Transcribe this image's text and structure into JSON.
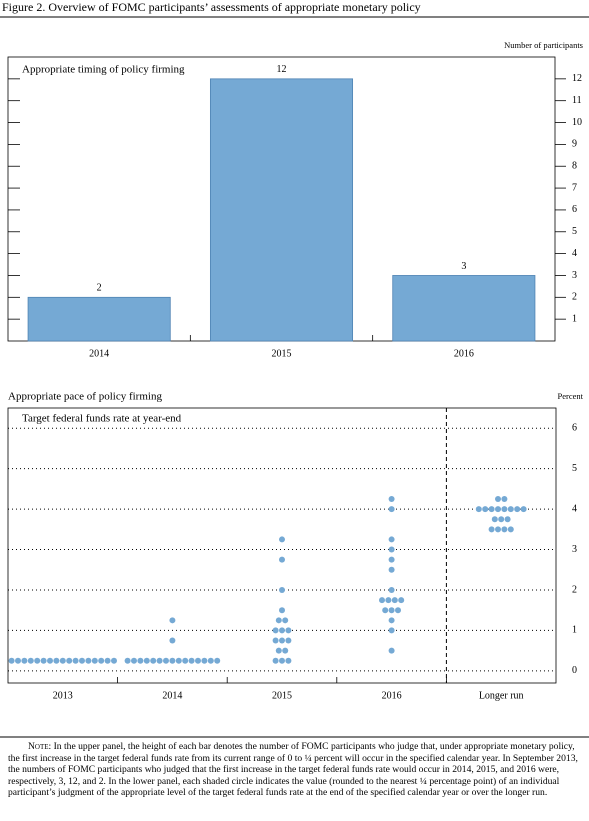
{
  "title": "Figure 2. Overview of FOMC participants’ assessments of appropriate monetary policy",
  "chart_data": [
    {
      "type": "bar",
      "title": "Appropriate timing of policy firming",
      "y_axis_label": "Number of participants",
      "categories": [
        "2014",
        "2015",
        "2016"
      ],
      "values": [
        2,
        12,
        3
      ],
      "color": "#75a9d4",
      "ylim": [
        0,
        13
      ],
      "yticks": [
        1,
        2,
        3,
        4,
        5,
        6,
        7,
        8,
        9,
        10,
        11,
        12
      ]
    },
    {
      "type": "dot",
      "title": "Appropriate pace of policy firming",
      "subtitle": "Target federal funds rate at year-end",
      "y_axis_label": "Percent",
      "categories": [
        "2013",
        "2014",
        "2015",
        "2016",
        "Longer run"
      ],
      "values": [
        [
          0.25,
          0.25,
          0.25,
          0.25,
          0.25,
          0.25,
          0.25,
          0.25,
          0.25,
          0.25,
          0.25,
          0.25,
          0.25,
          0.25,
          0.25,
          0.25,
          0.25
        ],
        [
          0.25,
          0.25,
          0.25,
          0.25,
          0.25,
          0.25,
          0.25,
          0.25,
          0.25,
          0.25,
          0.25,
          0.25,
          0.25,
          0.25,
          0.25,
          0.75,
          1.25
        ],
        [
          0.25,
          0.25,
          0.25,
          0.5,
          0.5,
          0.75,
          0.75,
          0.75,
          1.0,
          1.0,
          1.0,
          1.25,
          1.25,
          1.5,
          2.0,
          2.75,
          3.25
        ],
        [
          0.5,
          1.0,
          1.25,
          1.5,
          1.5,
          1.5,
          1.75,
          1.75,
          1.75,
          1.75,
          2.0,
          2.5,
          2.75,
          3.0,
          3.25,
          4.0,
          4.25
        ],
        [
          3.5,
          3.5,
          3.5,
          3.5,
          3.75,
          3.75,
          3.75,
          4.0,
          4.0,
          4.0,
          4.0,
          4.0,
          4.0,
          4.0,
          4.0,
          4.25,
          4.25
        ]
      ],
      "color": "#75a9d4",
      "ylim": [
        -0.3,
        6.5
      ],
      "yticks": [
        0,
        1,
        2,
        3,
        4,
        5,
        6
      ],
      "grid": true
    }
  ],
  "note_label": "Note:",
  "note": "In the upper panel, the height of each bar denotes the number of FOMC participants who judge that, under appropriate monetary policy, the first increase in the target federal funds rate from its current range of 0 to ¼ percent will occur in the specified calendar year. In September 2013, the numbers of FOMC participants who judged that the first increase in the target federal funds rate would occur in 2014, 2015, and 2016 were, respectively, 3, 12, and 2. In the lower panel, each shaded circle indicates the value (rounded to the nearest ¼ percentage point) of an individual participant’s judgment of the appropriate level of the target federal funds rate at the end of the specified calendar year or over the longer run."
}
